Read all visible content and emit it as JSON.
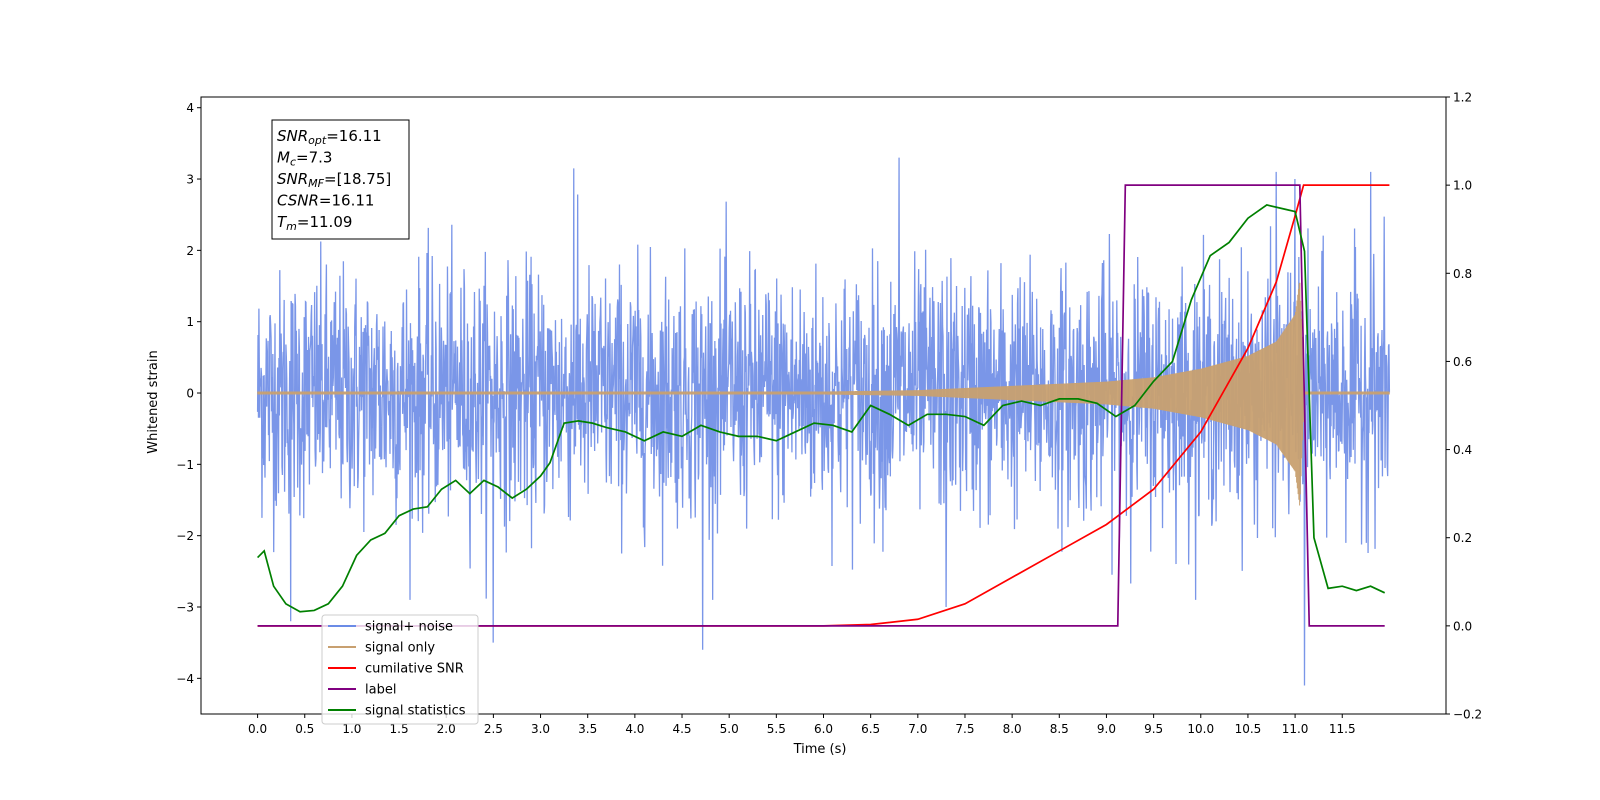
{
  "chart_data": {
    "type": "line",
    "xlabel": "Time (s)",
    "ylabel_left": "Whitened strain",
    "ylabel_right": "",
    "xlim": [
      -0.6,
      12.6
    ],
    "ylim_left": [
      -4.5,
      4.15
    ],
    "ylim_right": [
      -0.2,
      1.2
    ],
    "x_ticks": [
      0.0,
      0.5,
      1.0,
      1.5,
      2.0,
      2.5,
      3.0,
      3.5,
      4.0,
      4.5,
      5.0,
      5.5,
      6.0,
      6.5,
      7.0,
      7.5,
      8.0,
      8.5,
      9.0,
      9.5,
      10.0,
      10.5,
      11.0,
      11.5
    ],
    "x_tick_labels": [
      "0.0",
      "0.5",
      "1.0",
      "1.5",
      "2.0",
      "2.5",
      "3.0",
      "3.5",
      "4.0",
      "4.5",
      "5.0",
      "5.5",
      "6.0",
      "6.5",
      "7.0",
      "7.5",
      "8.0",
      "8.5",
      "9.0",
      "9.5",
      "10.0",
      "10.5",
      "11.0",
      "11.5"
    ],
    "y_ticks_left": [
      -4,
      -3,
      -2,
      -1,
      0,
      1,
      2,
      3,
      4
    ],
    "y_tick_labels_left": [
      "−4",
      "−3",
      "−2",
      "−1",
      "0",
      "1",
      "2",
      "3",
      "4"
    ],
    "y_ticks_right": [
      -0.2,
      0.0,
      0.2,
      0.4,
      0.6,
      0.8,
      1.0,
      1.2
    ],
    "y_tick_labels_right": [
      "−0.2",
      "0.0",
      "0.2",
      "0.4",
      "0.6",
      "0.8",
      "1.0",
      "1.2"
    ],
    "annotation": {
      "lines": [
        {
          "sym": "SNR",
          "sub": "opt",
          "value": "=16.11"
        },
        {
          "sym": "M",
          "sub": "c",
          "value": "=7.3"
        },
        {
          "sym": "SNR",
          "sub": "MF",
          "value": "=[18.75]"
        },
        {
          "sym": "CSNR",
          "sub": "",
          "value": "=16.11"
        },
        {
          "sym": "T",
          "sub": "m",
          "value": "=11.09"
        }
      ]
    },
    "legend": {
      "position": "lower-left",
      "entries": [
        "signal+ noise",
        "signal only",
        "cumilative SNR",
        "label",
        "signal statistics"
      ]
    },
    "series": [
      {
        "name": "signal+ noise",
        "axis": "left",
        "color": "#6b8be6",
        "style": "noise",
        "x_range": [
          0.0,
          12.0
        ],
        "envelope_std": 0.85,
        "peaks": [
          {
            "x": 2.5,
            "y": 3.5
          },
          {
            "x": 2.5,
            "y": -3.5
          },
          {
            "x": 4.72,
            "y": -3.6
          },
          {
            "x": 6.8,
            "y": 3.3
          },
          {
            "x": 7.3,
            "y": -3.0
          },
          {
            "x": 10.8,
            "y": 3.1
          },
          {
            "x": 11.0,
            "y": 3.0
          },
          {
            "x": 11.1,
            "y": 3.75
          },
          {
            "x": 11.1,
            "y": -4.1
          },
          {
            "x": 0.35,
            "y": -3.2
          },
          {
            "x": 3.35,
            "y": 3.15
          },
          {
            "x": 11.8,
            "y": 3.1
          }
        ]
      },
      {
        "name": "signal only",
        "axis": "left",
        "color": "#c8a070",
        "style": "chirp",
        "chirp_amplitude": [
          [
            0.0,
            0.02
          ],
          [
            6.0,
            0.02
          ],
          [
            7.0,
            0.04
          ],
          [
            8.0,
            0.1
          ],
          [
            9.0,
            0.16
          ],
          [
            9.5,
            0.22
          ],
          [
            10.0,
            0.34
          ],
          [
            10.5,
            0.52
          ],
          [
            10.8,
            0.72
          ],
          [
            11.0,
            1.1
          ],
          [
            11.05,
            1.6
          ],
          [
            11.1,
            0.02
          ],
          [
            12.0,
            0.02
          ]
        ]
      },
      {
        "name": "cumilative SNR",
        "axis": "right",
        "color": "#ff0000",
        "points": [
          [
            0.0,
            0.0
          ],
          [
            6.0,
            0.0
          ],
          [
            6.5,
            0.003
          ],
          [
            7.0,
            0.015
          ],
          [
            7.5,
            0.05
          ],
          [
            8.0,
            0.11
          ],
          [
            8.5,
            0.17
          ],
          [
            9.0,
            0.23
          ],
          [
            9.5,
            0.31
          ],
          [
            10.0,
            0.44
          ],
          [
            10.5,
            0.63
          ],
          [
            10.8,
            0.78
          ],
          [
            11.0,
            0.93
          ],
          [
            11.09,
            1.0
          ],
          [
            12.0,
            1.0
          ]
        ]
      },
      {
        "name": "label",
        "axis": "right",
        "color": "#800080",
        "points": [
          [
            0.0,
            0.0
          ],
          [
            9.12,
            0.0
          ],
          [
            9.2,
            1.0
          ],
          [
            11.05,
            1.0
          ],
          [
            11.15,
            0.0
          ],
          [
            11.95,
            0.0
          ]
        ]
      },
      {
        "name": "signal statistics",
        "axis": "right",
        "color": "#008000",
        "points": [
          [
            0.0,
            0.155
          ],
          [
            0.07,
            0.17
          ],
          [
            0.17,
            0.09
          ],
          [
            0.3,
            0.05
          ],
          [
            0.45,
            0.032
          ],
          [
            0.6,
            0.035
          ],
          [
            0.75,
            0.05
          ],
          [
            0.9,
            0.09
          ],
          [
            1.05,
            0.16
          ],
          [
            1.2,
            0.195
          ],
          [
            1.35,
            0.21
          ],
          [
            1.5,
            0.25
          ],
          [
            1.65,
            0.265
          ],
          [
            1.8,
            0.27
          ],
          [
            1.95,
            0.31
          ],
          [
            2.1,
            0.33
          ],
          [
            2.25,
            0.3
          ],
          [
            2.4,
            0.33
          ],
          [
            2.55,
            0.315
          ],
          [
            2.7,
            0.29
          ],
          [
            2.85,
            0.31
          ],
          [
            3.0,
            0.34
          ],
          [
            3.1,
            0.37
          ],
          [
            3.25,
            0.46
          ],
          [
            3.4,
            0.465
          ],
          [
            3.55,
            0.46
          ],
          [
            3.7,
            0.45
          ],
          [
            3.9,
            0.44
          ],
          [
            4.1,
            0.42
          ],
          [
            4.3,
            0.44
          ],
          [
            4.5,
            0.43
          ],
          [
            4.7,
            0.455
          ],
          [
            4.9,
            0.44
          ],
          [
            5.1,
            0.43
          ],
          [
            5.3,
            0.43
          ],
          [
            5.5,
            0.42
          ],
          [
            5.7,
            0.44
          ],
          [
            5.9,
            0.46
          ],
          [
            6.1,
            0.455
          ],
          [
            6.3,
            0.44
          ],
          [
            6.5,
            0.5
          ],
          [
            6.7,
            0.48
          ],
          [
            6.9,
            0.455
          ],
          [
            7.1,
            0.48
          ],
          [
            7.3,
            0.48
          ],
          [
            7.5,
            0.475
          ],
          [
            7.7,
            0.455
          ],
          [
            7.9,
            0.5
          ],
          [
            8.1,
            0.51
          ],
          [
            8.3,
            0.5
          ],
          [
            8.5,
            0.515
          ],
          [
            8.7,
            0.515
          ],
          [
            8.9,
            0.505
          ],
          [
            9.1,
            0.475
          ],
          [
            9.3,
            0.5
          ],
          [
            9.5,
            0.555
          ],
          [
            9.7,
            0.6
          ],
          [
            9.9,
            0.74
          ],
          [
            10.1,
            0.84
          ],
          [
            10.3,
            0.87
          ],
          [
            10.5,
            0.925
          ],
          [
            10.7,
            0.955
          ],
          [
            10.9,
            0.945
          ],
          [
            11.0,
            0.94
          ],
          [
            11.1,
            0.85
          ],
          [
            11.2,
            0.2
          ],
          [
            11.35,
            0.085
          ],
          [
            11.5,
            0.09
          ],
          [
            11.65,
            0.08
          ],
          [
            11.8,
            0.09
          ],
          [
            11.95,
            0.075
          ]
        ]
      }
    ]
  }
}
